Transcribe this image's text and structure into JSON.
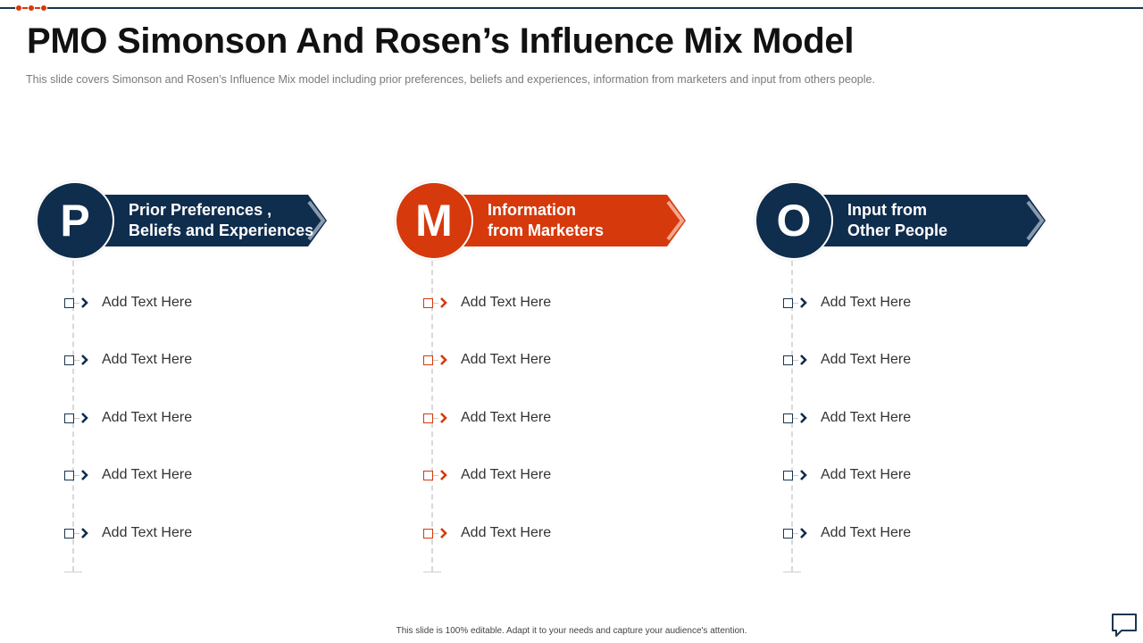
{
  "title": "PMO Simonson And Rosen’s Influence Mix Model",
  "subtitle": "This slide covers Simonson and Rosen’s Influence Mix  model including prior preferences,  beliefs and experiences,  information  from  marketers  and input  from others people.",
  "colors": {
    "navy": "#0f2d4d",
    "orange": "#d6390c"
  },
  "columns": [
    {
      "letter": "P",
      "heading_lines": [
        "Prior Preferences ,",
        "Beliefs and Experiences"
      ],
      "items": [
        "Add Text Here",
        "Add Text Here",
        "Add Text Here",
        "Add Text Here",
        "Add Text Here"
      ]
    },
    {
      "letter": "M",
      "heading_lines": [
        "Information",
        "from Marketers"
      ],
      "items": [
        "Add Text Here",
        "Add Text Here",
        "Add Text Here",
        "Add Text Here",
        "Add Text Here"
      ]
    },
    {
      "letter": "O",
      "heading_lines": [
        "Input from",
        "Other People"
      ],
      "items": [
        "Add Text Here",
        "Add Text Here",
        "Add Text Here",
        "Add Text Here",
        "Add Text Here"
      ]
    }
  ],
  "footer": "This slide is 100% editable. Adapt it to your needs and capture your audience's attention.",
  "icons": {
    "corner": "chat-icon",
    "header": "dot-chain-icon"
  }
}
